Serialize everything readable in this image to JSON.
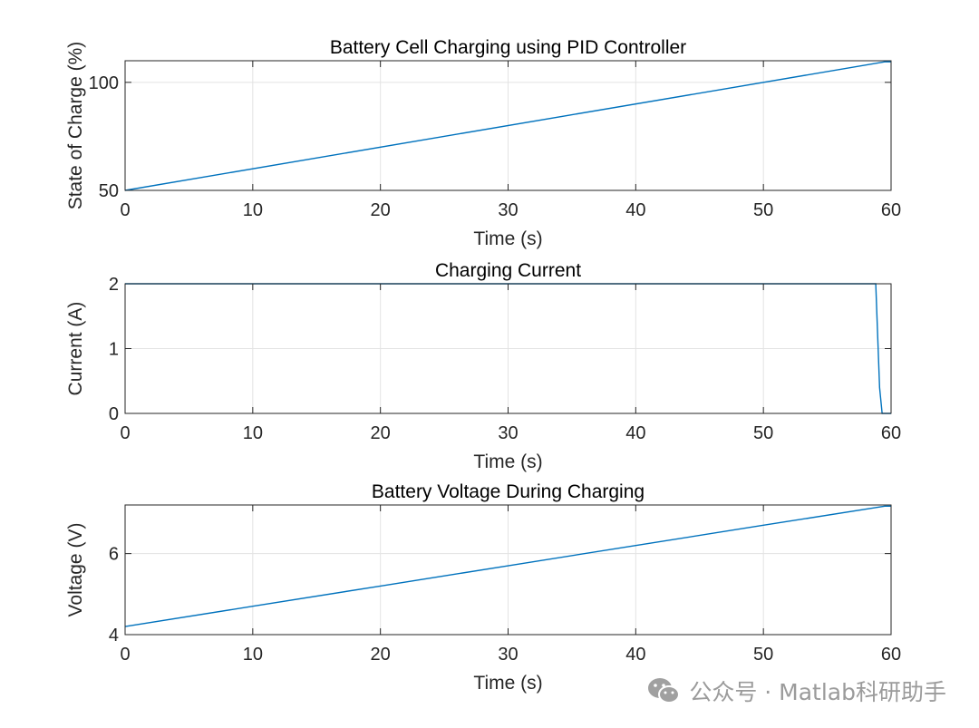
{
  "chart_data": [
    {
      "type": "line",
      "title": "Battery Cell Charging using PID Controller",
      "xlabel": "Time (s)",
      "ylabel": "State of Charge (%)",
      "xlim": [
        0,
        60
      ],
      "ylim": [
        50,
        110
      ],
      "xticks": [
        0,
        10,
        20,
        30,
        40,
        50,
        60
      ],
      "yticks": [
        50,
        100
      ],
      "grid": true,
      "series": [
        {
          "color": "#0072BD",
          "x": [
            0,
            59.5,
            60
          ],
          "y": [
            50,
            109.5,
            109.5
          ]
        }
      ]
    },
    {
      "type": "line",
      "title": "Charging Current",
      "xlabel": "Time (s)",
      "ylabel": "Current (A)",
      "xlim": [
        0,
        60
      ],
      "ylim": [
        0,
        2
      ],
      "xticks": [
        0,
        10,
        20,
        30,
        40,
        50,
        60
      ],
      "yticks": [
        0,
        1,
        2
      ],
      "grid": true,
      "series": [
        {
          "color": "#0072BD",
          "x": [
            0,
            58.8,
            59.1,
            59.3,
            60
          ],
          "y": [
            2,
            2,
            0.4,
            0,
            0
          ]
        }
      ]
    },
    {
      "type": "line",
      "title": "Battery Voltage During Charging",
      "xlabel": "Time (s)",
      "ylabel": "Voltage (V)",
      "xlim": [
        0,
        60
      ],
      "ylim": [
        4,
        7.2
      ],
      "xticks": [
        0,
        10,
        20,
        30,
        40,
        50,
        60
      ],
      "yticks": [
        4,
        6
      ],
      "grid": true,
      "series": [
        {
          "color": "#0072BD",
          "x": [
            0,
            10,
            20,
            30,
            40,
            50,
            59.5,
            60
          ],
          "y": [
            4.2,
            4.7,
            5.2,
            5.7,
            6.2,
            6.7,
            7.17,
            7.17
          ]
        }
      ]
    }
  ],
  "watermark": {
    "text": "公众号 · Matlab科研助手",
    "icon": "wechat-icon"
  }
}
